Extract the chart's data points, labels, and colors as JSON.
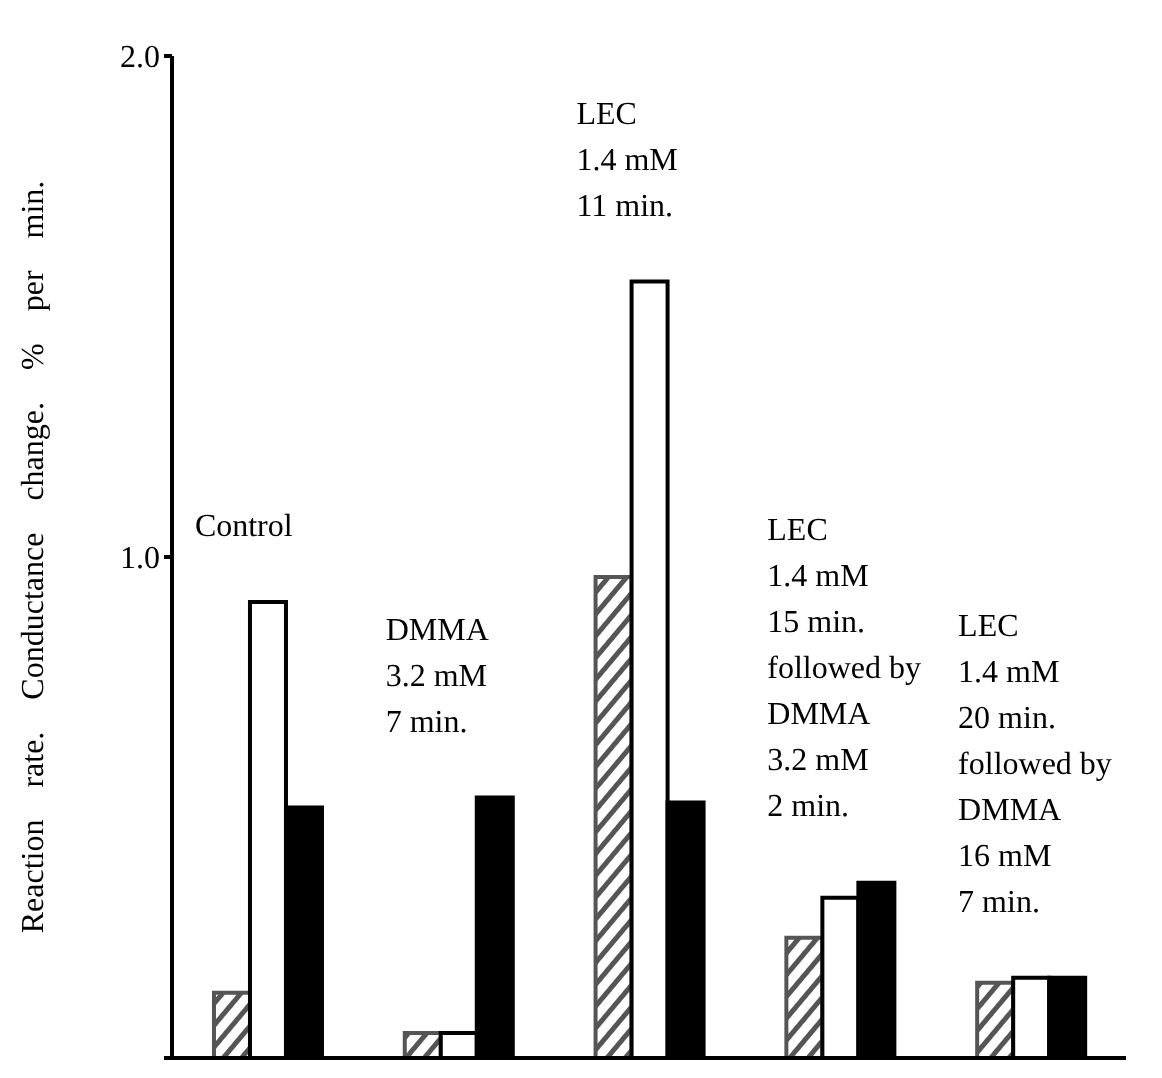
{
  "chart_data": {
    "type": "bar",
    "ylabel": "Reaction rate.          Conductance change.          % per min.",
    "categories": [
      "Control",
      "DMMA\n3.2 mM\n7 min.",
      "LEC\n1.4 mM\n11 min.",
      "LEC\n1.4 mM\n15 min.\nfollowed by\nDMMA\n3.2 mM\n2 min.",
      "LEC\n1.4 mM\n20 min.\nfollowed by\nDMMA\n16 mM\n7 min."
    ],
    "series": [
      {
        "color": "#555555",
        "values": [
          0.13,
          0.05,
          0.96,
          0.24,
          0.15
        ]
      },
      {
        "color": "#ffffff",
        "values": [
          0.91,
          0.05,
          1.55,
          0.32,
          0.16
        ]
      },
      {
        "color": "#000000",
        "values": [
          0.5,
          0.52,
          0.51,
          0.35,
          0.16
        ]
      }
    ],
    "ylim": [
      0,
      2
    ],
    "yticks": [
      {
        "value": 0,
        "label": null
      },
      {
        "value": 1,
        "label": "1.0"
      },
      {
        "value": 2,
        "label": "2.0"
      }
    ],
    "grid": false,
    "legend": false
  }
}
